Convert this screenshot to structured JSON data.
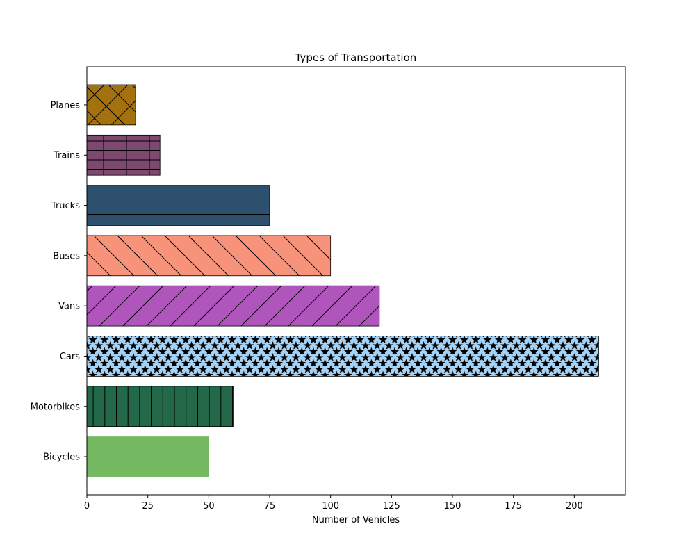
{
  "chart_data": {
    "type": "bar",
    "orientation": "horizontal",
    "title": "Types of Transportation",
    "xlabel": "Number of Vehicles",
    "ylabel": "",
    "categories": [
      "Bicycles",
      "Motorbikes",
      "Cars",
      "Vans",
      "Buses",
      "Trucks",
      "Trains",
      "Planes"
    ],
    "values": [
      50,
      60,
      210,
      120,
      100,
      75,
      30,
      20
    ],
    "colors": [
      "#74b862",
      "#236849",
      "#a4d2f7",
      "#b055bc",
      "#f7937a",
      "#2e506f",
      "#7d496f",
      "#a4710f"
    ],
    "hatches": [
      "none",
      "vertical",
      "stars",
      "diagonal-forward",
      "diagonal-back",
      "horizontal",
      "grid",
      "crosshatch"
    ],
    "xlim": [
      0,
      221
    ],
    "xticks": [
      0,
      25,
      50,
      75,
      100,
      125,
      150,
      175,
      200
    ],
    "grid": false,
    "legend": "none"
  }
}
